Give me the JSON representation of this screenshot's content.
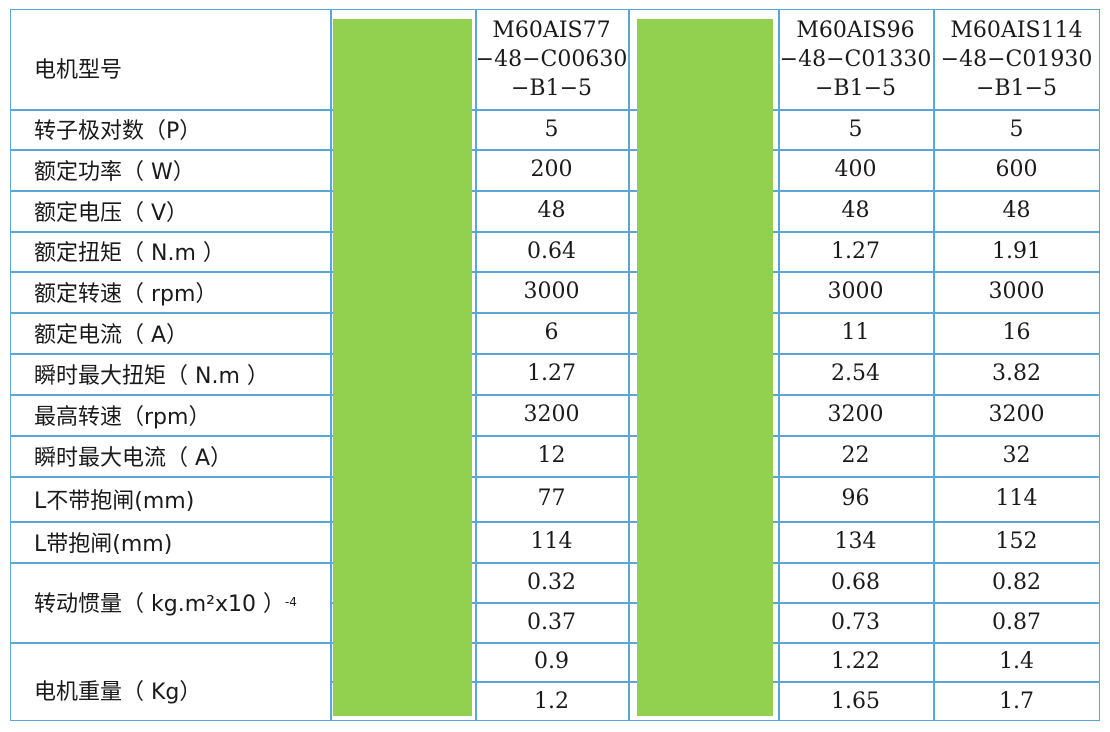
{
  "header": {
    "label": "电机型号",
    "models": [
      "M60AIS77\n−48−C00630\n−B1−5",
      "M60AIS96\n−48−C01330\n−B1−5",
      "M60AIS114\n−48−C01930\n−B1−5"
    ]
  },
  "rows": [
    {
      "label": "转子极对数（P）",
      "values": [
        "5",
        "5",
        "5"
      ]
    },
    {
      "label": "额定功率（ W）",
      "values": [
        "200",
        "400",
        "600"
      ]
    },
    {
      "label": "额定电压（ V）",
      "values": [
        "48",
        "48",
        "48"
      ]
    },
    {
      "label": "额定扭矩（ N.m ）",
      "values": [
        "0.64",
        "1.27",
        "1.91"
      ]
    },
    {
      "label": "额定转速（ rpm）",
      "values": [
        "3000",
        "3000",
        "3000"
      ]
    },
    {
      "label": "额定电流（ A）",
      "values": [
        "6",
        "11",
        "16"
      ]
    },
    {
      "label": "瞬时最大扭矩（ N.m ）",
      "values": [
        "1.27",
        "2.54",
        "3.82"
      ]
    },
    {
      "label": "最高转速（rpm）",
      "values": [
        "3200",
        "3200",
        "3200"
      ]
    },
    {
      "label": "瞬时最大电流（ A）",
      "values": [
        "12",
        "22",
        "32"
      ]
    },
    {
      "label": "L不带抱闸(mm)",
      "values": [
        "77",
        "96",
        "114"
      ]
    },
    {
      "label": "L带抱闸(mm)",
      "values": [
        "114",
        "134",
        "152"
      ]
    }
  ],
  "inertia": {
    "label": "转动惯量（ kg.m²x10 ）",
    "exponent": "-4",
    "values": [
      [
        "0.32",
        "0.68",
        "0.82"
      ],
      [
        "0.37",
        "0.73",
        "0.87"
      ]
    ]
  },
  "weight": {
    "label": "电机重量（ Kg）",
    "values": [
      [
        "0.9",
        "1.22",
        "1.4"
      ],
      [
        "1.2",
        "1.65",
        "1.7"
      ]
    ]
  },
  "colors": {
    "border": "#5aa6d6",
    "redaction": "#92d050"
  }
}
